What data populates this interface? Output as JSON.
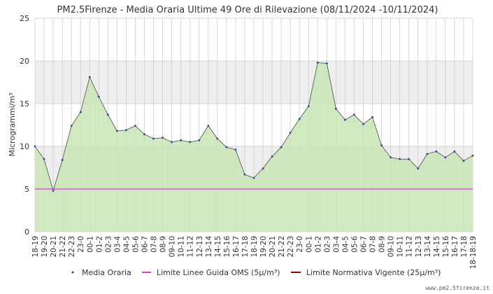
{
  "chart_data": {
    "type": "area",
    "title": "PM2.5Firenze - Media Oraria Ultime 49 Ore di Rilevazione (08/11/2024 -10/11/2024)",
    "ylabel": "Microgrammi/m³",
    "xlabel": "",
    "ylim": [
      0,
      25
    ],
    "yticks": [
      0,
      5,
      10,
      15,
      20,
      25
    ],
    "grid": true,
    "legend_position": "bottom",
    "categories": [
      "18-19",
      "19-20",
      "20-21",
      "21-22",
      "22-23",
      "23-0",
      "00-1",
      "01-2",
      "02-3",
      "03-4",
      "04-5",
      "05-6",
      "06-7",
      "07-8",
      "08-9",
      "09-10",
      "10-11",
      "11-12",
      "12-13",
      "13-14",
      "14-15",
      "15-16",
      "16-17",
      "17-18",
      "18-19",
      "19-20",
      "20-21",
      "21-22",
      "22-23",
      "23-0",
      "00-1",
      "01-2",
      "02-3",
      "03-4",
      "04-5",
      "05-6",
      "06-7",
      "07-8",
      "08-9",
      "09-10",
      "10-11",
      "11-12",
      "12-13",
      "13-14",
      "14-15",
      "15-16",
      "16-17",
      "17-18",
      "18-18:19"
    ],
    "series": [
      {
        "name": "Media Oraria",
        "color": "#3b4fa0",
        "fill": "#c9e5b5",
        "values": [
          10.0,
          8.5,
          4.8,
          8.4,
          12.4,
          14.0,
          18.1,
          15.8,
          13.7,
          11.8,
          11.9,
          12.4,
          11.4,
          10.9,
          11.0,
          10.5,
          10.7,
          10.5,
          10.7,
          12.4,
          10.9,
          9.9,
          9.6,
          6.7,
          6.3,
          7.4,
          8.8,
          9.9,
          11.6,
          13.2,
          14.7,
          19.8,
          19.7,
          14.4,
          13.1,
          13.7,
          12.6,
          13.4,
          10.1,
          8.7,
          8.5,
          8.5,
          7.4,
          9.1,
          9.4,
          8.7,
          9.4,
          8.3,
          8.9
        ]
      },
      {
        "name": "Limite Linee Guida OMS (5μ/m³)",
        "color": "#e830e8",
        "value": 5
      },
      {
        "name": "Limite Normativa Vigente (25μ/m³)",
        "color": "#8b0000",
        "value": 25
      }
    ],
    "credit": "www.pm2.5firenze.it"
  }
}
